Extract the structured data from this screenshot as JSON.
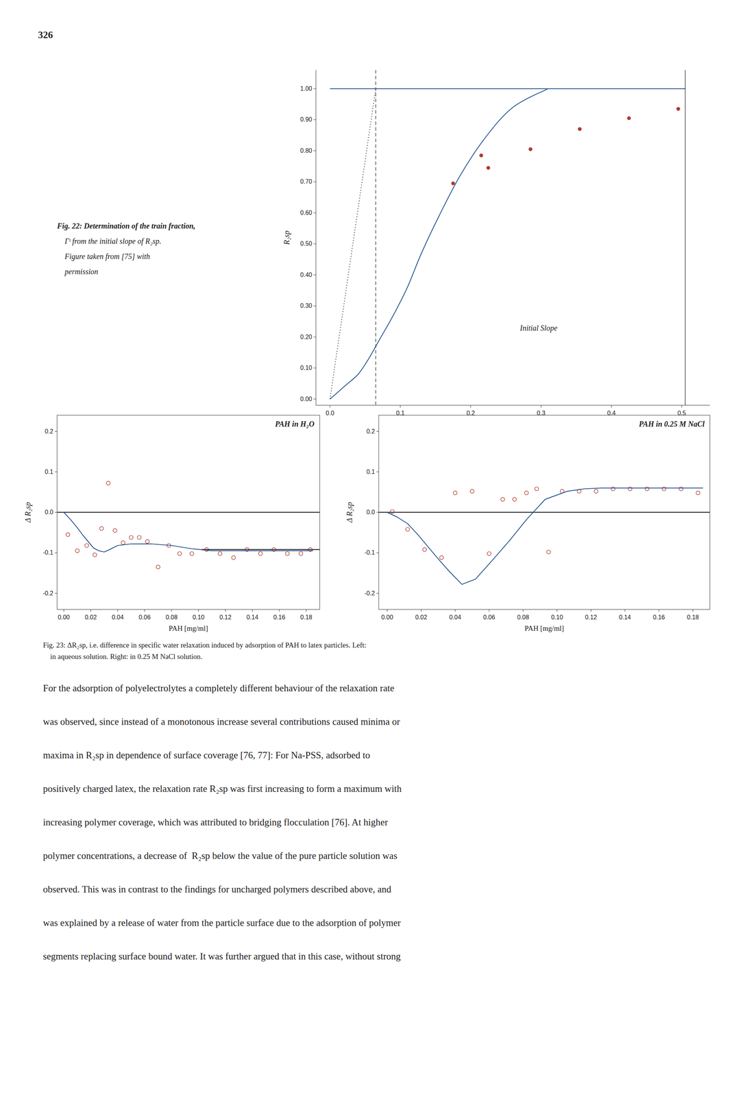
{
  "page_text": {
    "page_number": "326",
    "fig22_caption": [
      "Fig. 22: Determination of the train fraction,",
      "    Γᵗ from the initial slope of R₂sp.",
      "    Figure taken from [75] with",
      "    permission"
    ],
    "fig23_caption": [
      "Fig. 23: ΔR₂sp, i.e. difference in specific water relaxation induced by adsorption of PAH to latex particles. Left:",
      "    in aqueous solution. Right: in 0.25 M NaCl solution."
    ],
    "paragraph": [
      "For the adsorption of polyelectrolytes a completely different behaviour of the relaxation rate",
      "was observed, since instead of a monotonous increase several contributions caused minima or",
      "maxima in R₂sp in dependence of surface coverage [76, 77]: For Na-PSS, adsorbed to",
      "positively charged latex, the relaxation rate R₂sp was first increasing to form a maximum with",
      "increasing polymer coverage, which was attributed to bridging flocculation [76]. At higher",
      "polymer concentrations, a decrease of  R₂sp below the value of the pure particle solution was",
      "observed. This was in contrast to the findings for uncharged polymers described above, and",
      "was explained by a release of water from the particle surface due to the adsorption of polymer",
      "segments replacing surface bound water. It was further argued that in this case, without strong"
    ]
  },
  "chart_data": [
    {
      "type": "line",
      "ylabel": "R₂sp",
      "xlim": [
        -0.02,
        0.54
      ],
      "ylim": [
        -0.02,
        1.06
      ],
      "xticks": [
        {
          "value": 0.0,
          "label": "0.0"
        },
        0.1,
        0.2,
        0.3,
        0.4,
        0.5
      ],
      "yticks": [
        {
          "value": 0.0,
          "label": "0.00"
        },
        {
          "value": 0.1,
          "label": "0.10"
        },
        {
          "value": 0.2,
          "label": "0.20"
        },
        {
          "value": 0.3,
          "label": "0.30"
        },
        {
          "value": 0.4,
          "label": "0.40"
        },
        {
          "value": 0.5,
          "label": "0.50"
        },
        {
          "value": 0.6,
          "label": "0.60"
        },
        {
          "value": 0.7,
          "label": "0.70"
        },
        {
          "value": 0.8,
          "label": "0.80"
        },
        {
          "value": 0.9,
          "label": "0.90"
        },
        {
          "value": 1.0,
          "label": "1.00"
        }
      ],
      "grid": false,
      "annotations": [
        {
          "text": "Initial Slope",
          "x": 0.27,
          "y": 0.22
        }
      ],
      "series": [
        {
          "type": "line",
          "line_style": "solid",
          "x": [
            0.0,
            0.505
          ],
          "values": [
            1.0,
            1.0
          ]
        },
        {
          "type": "spline",
          "line_style": "solid",
          "x": [
            0.0,
            0.02,
            0.04,
            0.055,
            0.07,
            0.09,
            0.11,
            0.13,
            0.155,
            0.185,
            0.22,
            0.26,
            0.31
          ],
          "values": [
            0.0,
            0.04,
            0.08,
            0.13,
            0.19,
            0.27,
            0.36,
            0.47,
            0.59,
            0.72,
            0.84,
            0.94,
            1.0
          ]
        },
        {
          "type": "line",
          "line_style": "dotted",
          "x": [
            0.0,
            0.065
          ],
          "values": [
            0.0,
            1.0
          ]
        },
        {
          "type": "vline",
          "line_style": "dashed",
          "x": [
            0.065
          ]
        },
        {
          "type": "vline",
          "line_style": "solid",
          "x": [
            0.505
          ]
        },
        {
          "type": "scatter",
          "marker": "circle",
          "x": [
            0.175,
            0.225,
            0.285,
            0.355,
            0.425,
            0.495
          ],
          "values": [
            0.695,
            0.745,
            0.805,
            0.87,
            0.905,
            0.935
          ]
        },
        {
          "type": "scatter",
          "marker": "circle",
          "x": [
            0.215
          ],
          "values": [
            0.785
          ]
        }
      ]
    },
    {
      "type": "scatter",
      "title": "PAH in H₂O",
      "xlabel": "PAH [mg/ml]",
      "ylabel": "Δ R₂sp",
      "xlim": [
        -0.005,
        0.19
      ],
      "ylim": [
        -0.24,
        0.24
      ],
      "xticks": [
        {
          "value": 0.0,
          "label": "0.00"
        },
        0.02,
        0.04,
        0.06,
        0.08,
        {
          "value": 0.1,
          "label": "0.10"
        },
        0.12,
        0.14,
        0.16,
        0.18
      ],
      "yticks": [
        -0.2,
        -0.1,
        {
          "value": 0.0,
          "label": "0.0"
        },
        0.1,
        0.2
      ],
      "grid": false,
      "series": [
        {
          "type": "hline",
          "line_style": "solid",
          "values": [
            0.0
          ]
        },
        {
          "type": "scatter",
          "marker": "open-circle",
          "x": [
            0.003,
            0.01,
            0.017,
            0.023,
            0.028,
            0.033,
            0.038,
            0.044,
            0.05,
            0.056,
            0.062,
            0.07,
            0.078,
            0.086,
            0.095,
            0.106,
            0.116,
            0.126,
            0.136,
            0.146,
            0.156,
            0.166,
            0.176,
            0.183
          ],
          "values": [
            -0.055,
            -0.095,
            -0.082,
            -0.105,
            -0.04,
            0.072,
            -0.045,
            -0.075,
            -0.062,
            -0.062,
            -0.072,
            -0.135,
            -0.082,
            -0.102,
            -0.102,
            -0.092,
            -0.102,
            -0.112,
            -0.092,
            -0.102,
            -0.092,
            -0.102,
            -0.102,
            -0.092
          ]
        },
        {
          "type": "line",
          "line_style": "solid",
          "x": [
            0.0,
            0.005,
            0.01,
            0.014,
            0.018,
            0.022,
            0.026,
            0.03,
            0.034,
            0.04,
            0.05,
            0.065,
            0.08,
            0.095,
            0.11,
            0.13,
            0.15,
            0.185
          ],
          "values": [
            0.0,
            -0.018,
            -0.038,
            -0.056,
            -0.072,
            -0.088,
            -0.095,
            -0.098,
            -0.092,
            -0.082,
            -0.078,
            -0.078,
            -0.082,
            -0.09,
            -0.095,
            -0.095,
            -0.095,
            -0.095
          ]
        },
        {
          "type": "hline",
          "line_style": "solid",
          "values": [
            -0.092
          ]
        }
      ]
    },
    {
      "type": "scatter",
      "title": "PAH in 0.25 M NaCl",
      "xlabel": "PAH [mg/ml]",
      "ylabel": "Δ R₂sp",
      "xlim": [
        -0.005,
        0.19
      ],
      "ylim": [
        -0.24,
        0.24
      ],
      "xticks": [
        {
          "value": 0.0,
          "label": "0.00"
        },
        0.02,
        0.04,
        0.06,
        0.08,
        {
          "value": 0.1,
          "label": "0.10"
        },
        0.12,
        0.14,
        0.16,
        0.18
      ],
      "yticks": [
        -0.2,
        -0.1,
        {
          "value": 0.0,
          "label": "0.0"
        },
        0.1,
        0.2
      ],
      "grid": false,
      "series": [
        {
          "type": "hline",
          "line_style": "solid",
          "values": [
            0.0
          ]
        },
        {
          "type": "scatter",
          "marker": "open-circle",
          "x": [
            0.003,
            0.012,
            0.022,
            0.032,
            0.04,
            0.05,
            0.06,
            0.068,
            0.075,
            0.082,
            0.088,
            0.095,
            0.103,
            0.113,
            0.123,
            0.133,
            0.143,
            0.153,
            0.163,
            0.173,
            0.183
          ],
          "values": [
            0.002,
            -0.042,
            -0.092,
            -0.112,
            0.048,
            0.052,
            -0.102,
            0.032,
            0.032,
            0.048,
            0.058,
            -0.098,
            0.052,
            0.052,
            0.052,
            0.058,
            0.058,
            0.058,
            0.058,
            0.058,
            0.048
          ]
        },
        {
          "type": "line",
          "line_style": "solid",
          "x": [
            0.0,
            0.006,
            0.012,
            0.018,
            0.024,
            0.03,
            0.037,
            0.044,
            0.052,
            0.062,
            0.072,
            0.082,
            0.093,
            0.106,
            0.116,
            0.126,
            0.136,
            0.146,
            0.156,
            0.166,
            0.176,
            0.186
          ],
          "values": [
            0.0,
            -0.012,
            -0.028,
            -0.055,
            -0.085,
            -0.115,
            -0.148,
            -0.178,
            -0.165,
            -0.118,
            -0.07,
            -0.018,
            0.032,
            0.052,
            0.058,
            0.06,
            0.06,
            0.06,
            0.06,
            0.06,
            0.06,
            0.06
          ]
        }
      ]
    }
  ]
}
